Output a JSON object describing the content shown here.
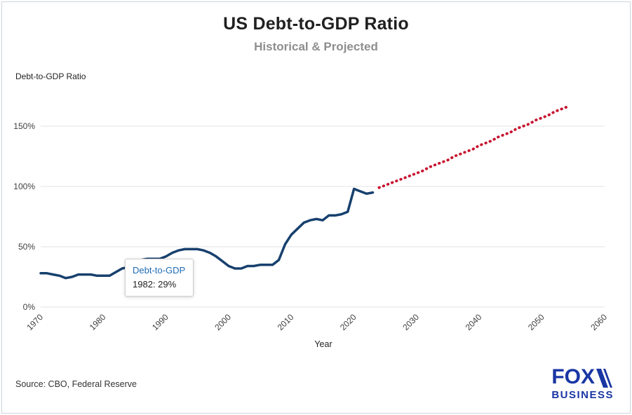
{
  "header": {
    "title": "US Debt-to-GDP Ratio",
    "subtitle": "Historical & Projected"
  },
  "tooltip": {
    "series": "Debt-to-GDP",
    "value": "1982: 29%",
    "series_color": "#1f6cb5"
  },
  "footer": {
    "source": "Source: CBO, Federal Reserve",
    "logo_line1": "FOX",
    "logo_line2": "BUSINESS",
    "logo_color": "#1936a4"
  },
  "chart_data": {
    "type": "line",
    "title": "US Debt-to-GDP Ratio",
    "subtitle": "Historical & Projected",
    "xlabel": "Year",
    "ylabel": "Debt-to-GDP Ratio",
    "xlim": [
      1970,
      2060
    ],
    "ylim": [
      0,
      175
    ],
    "grid": true,
    "legend": "none",
    "yticks": [
      {
        "value": 0,
        "label": "0%"
      },
      {
        "value": 50,
        "label": "50%"
      },
      {
        "value": 100,
        "label": "100%"
      },
      {
        "value": 150,
        "label": "150%"
      }
    ],
    "xticks": [
      1970,
      1980,
      1990,
      2000,
      2010,
      2020,
      2030,
      2040,
      2050,
      2060
    ],
    "series": [
      {
        "name": "Historical",
        "line_style": "solid",
        "color": "#17406d",
        "x": [
          1970,
          1971,
          1972,
          1973,
          1974,
          1975,
          1976,
          1977,
          1978,
          1979,
          1980,
          1981,
          1982,
          1983,
          1984,
          1985,
          1986,
          1987,
          1988,
          1989,
          1990,
          1991,
          1992,
          1993,
          1994,
          1995,
          1996,
          1997,
          1998,
          1999,
          2000,
          2001,
          2002,
          2003,
          2004,
          2005,
          2006,
          2007,
          2008,
          2009,
          2010,
          2011,
          2012,
          2013,
          2014,
          2015,
          2016,
          2017,
          2018,
          2019,
          2020,
          2021,
          2022,
          2023
        ],
        "y": [
          28,
          28,
          27,
          26,
          24,
          25,
          27,
          27,
          27,
          26,
          26,
          26,
          29,
          32,
          33,
          36,
          39,
          40,
          40,
          40,
          42,
          45,
          47,
          48,
          48,
          48,
          47,
          45,
          42,
          38,
          34,
          32,
          32,
          34,
          34,
          35,
          35,
          35,
          39,
          52,
          60,
          65,
          70,
          72,
          73,
          72,
          76,
          76,
          77,
          79,
          98,
          96,
          94,
          95
        ]
      },
      {
        "name": "Projected",
        "line_style": "dotted",
        "color": "#c8102e",
        "x": [
          2024,
          2025,
          2026,
          2027,
          2028,
          2029,
          2030,
          2031,
          2032,
          2033,
          2034,
          2035,
          2036,
          2037,
          2038,
          2039,
          2040,
          2041,
          2042,
          2043,
          2044,
          2045,
          2046,
          2047,
          2048,
          2049,
          2050,
          2051,
          2052,
          2053,
          2054
        ],
        "y": [
          99,
          101,
          103,
          105,
          107,
          109,
          111,
          113,
          116,
          118,
          120,
          122,
          125,
          127,
          129,
          131,
          134,
          136,
          138,
          141,
          143,
          145,
          148,
          150,
          152,
          155,
          157,
          159,
          162,
          164,
          166
        ]
      }
    ]
  }
}
